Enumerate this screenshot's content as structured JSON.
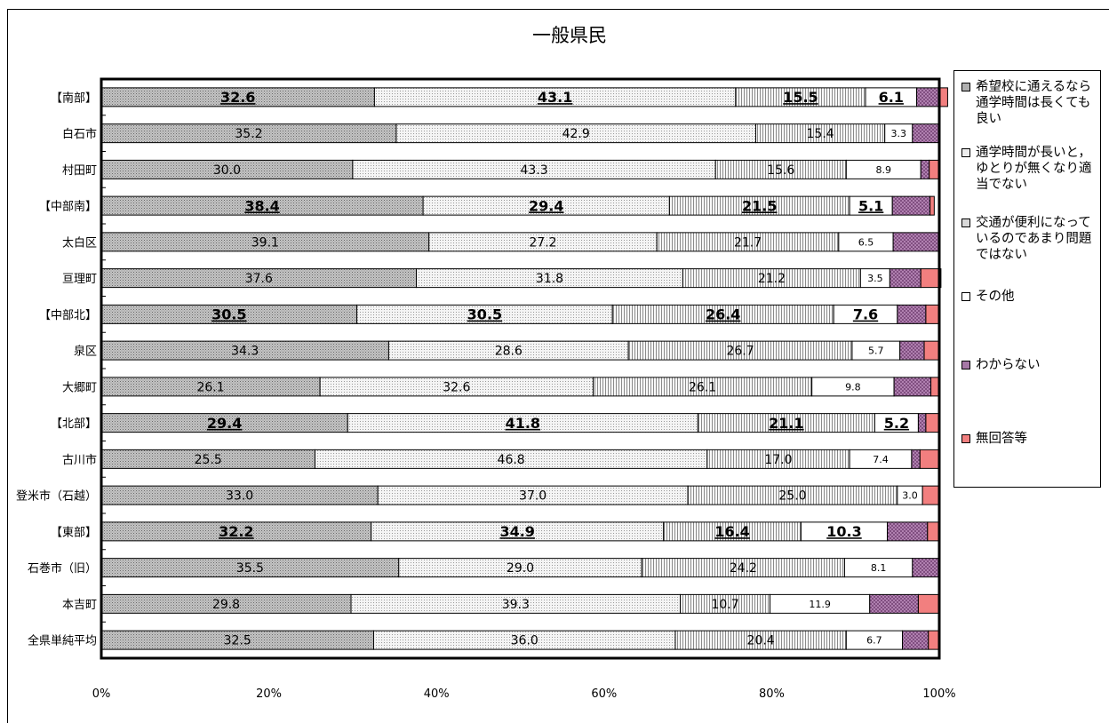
{
  "chart_data": {
    "type": "bar",
    "orientation": "horizontal",
    "stacked": "percent",
    "title": "一般県民",
    "categories": [
      "【南部】",
      "白石市",
      "村田町",
      "【中部南】",
      "太白区",
      "亘理町",
      "【中部北】",
      "泉区",
      "大郷町",
      "【北部】",
      "古川市",
      "登米市（石越）",
      "【東部】",
      "石巻市（旧）",
      "本吉町",
      "全県単純平均"
    ],
    "group_rows": [
      0,
      3,
      6,
      9,
      12
    ],
    "series": [
      {
        "name": "希望校に通えるなら通学時間は長くても良い",
        "color": "#b0b0b0",
        "pattern": "dense-dots",
        "values": [
          32.6,
          35.2,
          30.0,
          38.4,
          39.1,
          37.6,
          30.5,
          34.3,
          26.1,
          29.4,
          25.5,
          33.0,
          32.2,
          35.5,
          29.8,
          32.5
        ]
      },
      {
        "name": "通学時間が長いと，ゆとりが無くなり適当でない",
        "color": "#ededed",
        "pattern": "light-dots",
        "values": [
          43.1,
          42.9,
          43.3,
          29.4,
          27.2,
          31.8,
          30.5,
          28.6,
          32.6,
          41.8,
          46.8,
          37.0,
          34.9,
          29.0,
          39.3,
          36.0
        ]
      },
      {
        "name": "交通が便利になっているのであまり問題ではない",
        "color": "#d9d9d9",
        "pattern": "vertical-lines",
        "values": [
          15.5,
          15.4,
          15.6,
          21.5,
          21.7,
          21.2,
          26.4,
          26.7,
          26.1,
          21.1,
          17.0,
          25.0,
          16.4,
          24.2,
          10.7,
          20.4
        ]
      },
      {
        "name": "その他",
        "color": "#ffffff",
        "pattern": "none",
        "values": [
          6.1,
          3.3,
          8.9,
          5.1,
          6.5,
          3.5,
          7.6,
          5.7,
          9.8,
          5.2,
          7.4,
          3.0,
          10.3,
          8.1,
          11.9,
          6.7
        ]
      },
      {
        "name": "わからない",
        "color": "#a678a6",
        "pattern": "crosshatch",
        "values": [
          2.7,
          3.2,
          1.0,
          4.5,
          5.5,
          3.7,
          3.4,
          2.9,
          4.4,
          0.9,
          1.0,
          0.0,
          4.8,
          3.2,
          5.8,
          3.1
        ]
      },
      {
        "name": "無回答等",
        "color": "#f27f7f",
        "pattern": "none",
        "values": [
          1.0,
          0.0,
          1.2,
          0.5,
          0.0,
          2.4,
          1.6,
          1.8,
          1.0,
          1.6,
          2.3,
          2.0,
          1.4,
          0.0,
          2.5,
          1.3
        ]
      }
    ],
    "data_labels": {
      "show_series": [
        0,
        1,
        2,
        3
      ],
      "group_style": "bold-underline"
    },
    "x_ticks": [
      "0%",
      "20%",
      "40%",
      "60%",
      "80%",
      "100%"
    ],
    "xlim": [
      0,
      100
    ],
    "legend_position": "right",
    "grid": false
  },
  "legend": {
    "items": [
      {
        "label": "希望校に通えるなら通学時間は長くても良い",
        "color": "#b0b0b0"
      },
      {
        "label": "通学時間が長いと，ゆとりが無くなり適当でない",
        "color": "#ededed"
      },
      {
        "label": "交通が便利になっているのであまり問題ではない",
        "color": "#d9d9d9"
      },
      {
        "label": "その他",
        "color": "#ffffff"
      },
      {
        "label": "わからない",
        "color": "#a678a6"
      },
      {
        "label": "無回答等",
        "color": "#f27f7f"
      }
    ]
  }
}
